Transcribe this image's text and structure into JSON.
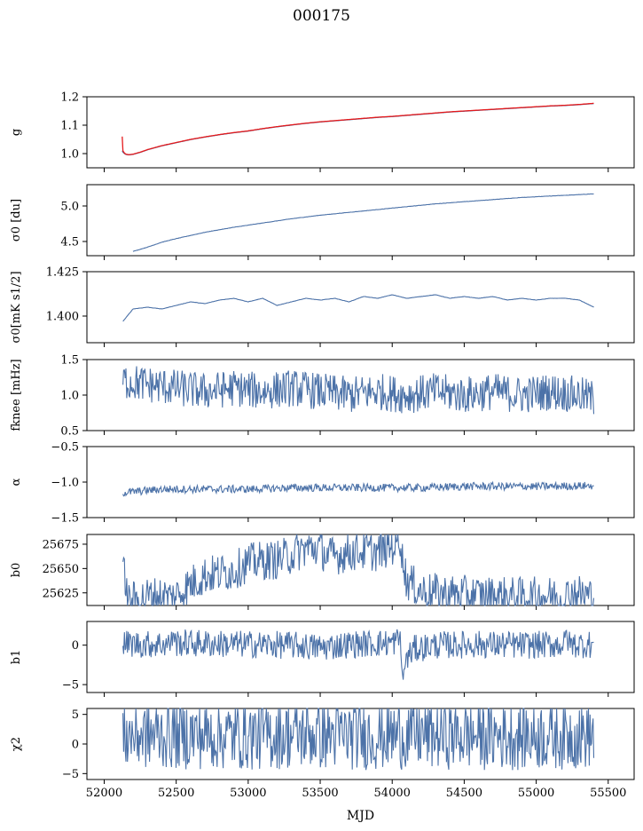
{
  "title": "000175",
  "colors": {
    "series": "#4c72a8",
    "fit": "#e41a1c",
    "axis": "#000000"
  },
  "x_axis": {
    "label": "MJD",
    "range": [
      51880,
      55680
    ],
    "ticks": [
      52000,
      52500,
      53000,
      53500,
      54000,
      54500,
      55000,
      55500
    ],
    "tick_labels": [
      "52000",
      "52500",
      "53000",
      "53500",
      "54000",
      "54500",
      "55000",
      "55500"
    ]
  },
  "chart_data": [
    {
      "type": "line",
      "ylabel": "g",
      "ylim": [
        0.95,
        1.2
      ],
      "yticks": [
        1.0,
        1.1,
        1.2
      ],
      "ytick_labels": [
        "1.0",
        "1.1",
        "1.2"
      ],
      "x": [
        52125,
        52130,
        52140,
        52150,
        52170,
        52200,
        52250,
        52300,
        52400,
        52500,
        52600,
        52700,
        52800,
        52900,
        53000,
        53100,
        53200,
        53300,
        53400,
        53500,
        53600,
        53700,
        53800,
        53900,
        54000,
        54100,
        54200,
        54300,
        54400,
        54500,
        54600,
        54700,
        54800,
        54900,
        55000,
        55100,
        55200,
        55300,
        55400
      ],
      "series": [
        {
          "values": [
            1.01,
            1.005,
            1.0,
            0.997,
            0.995,
            0.997,
            1.004,
            1.013,
            1.027,
            1.038,
            1.049,
            1.058,
            1.066,
            1.073,
            1.079,
            1.087,
            1.094,
            1.1,
            1.106,
            1.111,
            1.115,
            1.119,
            1.123,
            1.127,
            1.13,
            1.134,
            1.138,
            1.142,
            1.146,
            1.149,
            1.152,
            1.155,
            1.158,
            1.161,
            1.164,
            1.167,
            1.169,
            1.172,
            1.176
          ]
        },
        {
          "values": [
            1.06,
            1.01,
            1.002,
            0.998,
            0.996,
            0.998,
            1.005,
            1.014,
            1.028,
            1.039,
            1.05,
            1.059,
            1.067,
            1.074,
            1.08,
            1.088,
            1.095,
            1.101,
            1.107,
            1.112,
            1.116,
            1.12,
            1.124,
            1.128,
            1.131,
            1.135,
            1.139,
            1.143,
            1.147,
            1.15,
            1.153,
            1.156,
            1.159,
            1.162,
            1.165,
            1.168,
            1.17,
            1.173,
            1.177
          ]
        }
      ]
    },
    {
      "type": "line",
      "ylabel": "σ0 [du]",
      "ylim": [
        4.3,
        5.3
      ],
      "yticks": [
        4.5,
        5.0
      ],
      "ytick_labels": [
        "4.5",
        "5.0"
      ],
      "x": [
        52200,
        52300,
        52400,
        52500,
        52700,
        52900,
        53100,
        53300,
        53500,
        53700,
        53900,
        54100,
        54300,
        54500,
        54700,
        54900,
        55100,
        55300,
        55400
      ],
      "values": [
        4.36,
        4.42,
        4.49,
        4.54,
        4.63,
        4.7,
        4.76,
        4.82,
        4.87,
        4.91,
        4.95,
        4.99,
        5.03,
        5.06,
        5.09,
        5.12,
        5.14,
        5.16,
        5.17
      ]
    },
    {
      "type": "line",
      "ylabel": "σ0[mK s1/2]",
      "ylim": [
        1.385,
        1.425
      ],
      "yticks": [
        1.4,
        1.425
      ],
      "ytick_labels": [
        "1.400",
        "1.425"
      ],
      "x": [
        52130,
        52200,
        52300,
        52400,
        52500,
        52600,
        52700,
        52800,
        52900,
        53000,
        53100,
        53200,
        53300,
        53400,
        53500,
        53600,
        53700,
        53800,
        53900,
        54000,
        54100,
        54200,
        54300,
        54400,
        54500,
        54600,
        54700,
        54800,
        54900,
        55000,
        55100,
        55200,
        55300,
        55400
      ],
      "values": [
        1.397,
        1.404,
        1.405,
        1.404,
        1.406,
        1.408,
        1.407,
        1.409,
        1.41,
        1.408,
        1.41,
        1.406,
        1.408,
        1.41,
        1.409,
        1.41,
        1.408,
        1.411,
        1.41,
        1.412,
        1.41,
        1.411,
        1.412,
        1.41,
        1.411,
        1.41,
        1.411,
        1.409,
        1.41,
        1.409,
        1.41,
        1.41,
        1.409,
        1.405
      ]
    },
    {
      "type": "line",
      "ylabel": "fknee [mHz]",
      "ylim": [
        0.5,
        1.5
      ],
      "yticks": [
        0.5,
        1.0,
        1.5
      ],
      "ytick_labels": [
        "0.5",
        "1.0",
        "1.5"
      ],
      "x": [
        52130,
        52300,
        52500,
        52700,
        52900,
        53100,
        53300,
        53500,
        53700,
        53900,
        54100,
        54300,
        54500,
        54700,
        54900,
        55100,
        55300,
        55400
      ],
      "values": [
        1.2,
        1.15,
        1.1,
        1.05,
        1.1,
        1.05,
        1.1,
        1.05,
        1.0,
        1.05,
        1.0,
        1.05,
        1.0,
        1.05,
        1.0,
        1.05,
        1.0,
        0.95
      ]
    },
    {
      "type": "line",
      "ylabel": "α",
      "ylim": [
        -1.5,
        -0.5
      ],
      "yticks": [
        -1.5,
        -1.0,
        -0.5
      ],
      "ytick_labels": [
        "−1.5",
        "−1.0",
        "−0.5"
      ],
      "x": [
        52130,
        52400,
        52700,
        53000,
        53300,
        53600,
        53900,
        54200,
        54500,
        54800,
        55100,
        55400
      ],
      "values": [
        -1.15,
        -1.1,
        -1.1,
        -1.1,
        -1.08,
        -1.08,
        -1.08,
        -1.08,
        -1.06,
        -1.06,
        -1.06,
        -1.05
      ]
    },
    {
      "type": "line",
      "ylabel": "b0",
      "ylim": [
        25612,
        25685
      ],
      "yticks": [
        25625,
        25650,
        25675
      ],
      "ytick_labels": [
        "25625",
        "25650",
        "25675"
      ],
      "x": [
        52130,
        52150,
        52160,
        52200,
        52300,
        52400,
        52480,
        52600,
        52700,
        52800,
        52900,
        53000,
        53100,
        53200,
        53300,
        53400,
        53500,
        53550,
        53600,
        53700,
        53800,
        53900,
        54000,
        54060,
        54070,
        54100,
        54200,
        54300,
        54500,
        54700,
        54900,
        55100,
        55200,
        55250,
        55300,
        55400
      ],
      "values": [
        25643,
        25642,
        25616,
        25617,
        25621,
        25622,
        25620,
        25634,
        25643,
        25645,
        25648,
        25656,
        25658,
        25659,
        25664,
        25671,
        25671,
        25663,
        25663,
        25667,
        25668,
        25667,
        25673,
        25682,
        25660,
        25638,
        25627,
        25625,
        25623,
        25622,
        25621,
        25622,
        25620,
        25626,
        25624,
        25621
      ]
    },
    {
      "type": "line",
      "ylabel": "b1",
      "ylim": [
        -6,
        3
      ],
      "yticks": [
        -5,
        0
      ],
      "ytick_labels": [
        "−5",
        "0"
      ],
      "x": [
        52130,
        52300,
        52470,
        52480,
        52490,
        52700,
        53000,
        53300,
        53500,
        53700,
        54000,
        54060,
        54070,
        54090,
        54150,
        54300,
        54600,
        54900,
        55200,
        55210,
        55230,
        55400
      ],
      "values": [
        0.2,
        0.1,
        0.2,
        2.8,
        0.3,
        0.2,
        0.1,
        0.0,
        -0.3,
        0.1,
        0.3,
        0.8,
        -5.2,
        -2.0,
        -0.5,
        0.0,
        0.1,
        0.0,
        0.1,
        1.5,
        0.1,
        0.1
      ]
    },
    {
      "type": "line",
      "ylabel": "χ2",
      "ylim": [
        -6,
        6
      ],
      "yticks": [
        -5,
        0,
        5
      ],
      "ytick_labels": [
        "−5",
        "0",
        "5"
      ],
      "x": [
        52130,
        52400,
        52700,
        53000,
        53300,
        53600,
        53900,
        54200,
        54500,
        54800,
        55100,
        55400
      ],
      "values": [
        1.5,
        1.6,
        1.5,
        1.4,
        1.6,
        1.5,
        1.4,
        1.6,
        1.5,
        1.4,
        1.5,
        1.6
      ]
    }
  ]
}
